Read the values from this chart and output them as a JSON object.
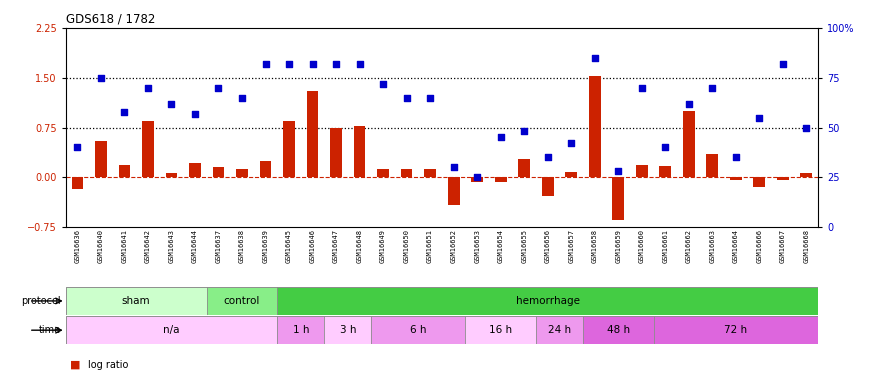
{
  "title": "GDS618 / 1782",
  "samples": [
    "GSM16636",
    "GSM16640",
    "GSM16641",
    "GSM16642",
    "GSM16643",
    "GSM16644",
    "GSM16637",
    "GSM16638",
    "GSM16639",
    "GSM16645",
    "GSM16646",
    "GSM16647",
    "GSM16648",
    "GSM16649",
    "GSM16650",
    "GSM16651",
    "GSM16652",
    "GSM16653",
    "GSM16654",
    "GSM16655",
    "GSM16656",
    "GSM16657",
    "GSM16658",
    "GSM16659",
    "GSM16660",
    "GSM16661",
    "GSM16662",
    "GSM16663",
    "GSM16664",
    "GSM16666",
    "GSM16667",
    "GSM16668"
  ],
  "log_ratio": [
    -0.18,
    0.55,
    0.18,
    0.85,
    0.07,
    0.22,
    0.15,
    0.12,
    0.25,
    0.85,
    1.3,
    0.75,
    0.78,
    0.12,
    0.13,
    0.12,
    -0.42,
    -0.07,
    -0.08,
    0.27,
    -0.28,
    0.08,
    1.52,
    -0.65,
    0.18,
    0.17,
    1.0,
    0.35,
    -0.04,
    -0.15,
    -0.04,
    0.07
  ],
  "pct_rank": [
    40,
    75,
    58,
    70,
    62,
    57,
    70,
    65,
    82,
    82,
    82,
    82,
    82,
    72,
    65,
    65,
    30,
    25,
    45,
    48,
    35,
    42,
    85,
    28,
    70,
    40,
    62,
    70,
    35,
    55,
    82,
    50
  ],
  "protocol_groups": [
    {
      "label": "sham",
      "start": 0,
      "end": 5,
      "color": "#ccffcc"
    },
    {
      "label": "control",
      "start": 6,
      "end": 8,
      "color": "#88ee88"
    },
    {
      "label": "hemorrhage",
      "start": 9,
      "end": 31,
      "color": "#44cc44"
    }
  ],
  "time_groups": [
    {
      "label": "n/a",
      "start": 0,
      "end": 8,
      "color": "#ffccff"
    },
    {
      "label": "1 h",
      "start": 9,
      "end": 10,
      "color": "#ee99ee"
    },
    {
      "label": "3 h",
      "start": 11,
      "end": 12,
      "color": "#ffccff"
    },
    {
      "label": "6 h",
      "start": 13,
      "end": 16,
      "color": "#ee99ee"
    },
    {
      "label": "16 h",
      "start": 17,
      "end": 19,
      "color": "#ffccff"
    },
    {
      "label": "24 h",
      "start": 20,
      "end": 21,
      "color": "#ee99ee"
    },
    {
      "label": "48 h",
      "start": 22,
      "end": 24,
      "color": "#dd66dd"
    },
    {
      "label": "72 h",
      "start": 25,
      "end": 31,
      "color": "#dd66dd"
    }
  ],
  "ylim_left": [
    -0.75,
    2.25
  ],
  "ylim_right": [
    0,
    100
  ],
  "yticks_left": [
    -0.75,
    0.0,
    0.75,
    1.5,
    2.25
  ],
  "yticks_right": [
    0,
    25,
    50,
    75,
    100
  ],
  "hlines": [
    0.75,
    1.5
  ],
  "bar_color": "#cc2200",
  "scatter_color": "#0000cc",
  "bar_width": 0.5,
  "xtick_bg": "#d8d8d8"
}
